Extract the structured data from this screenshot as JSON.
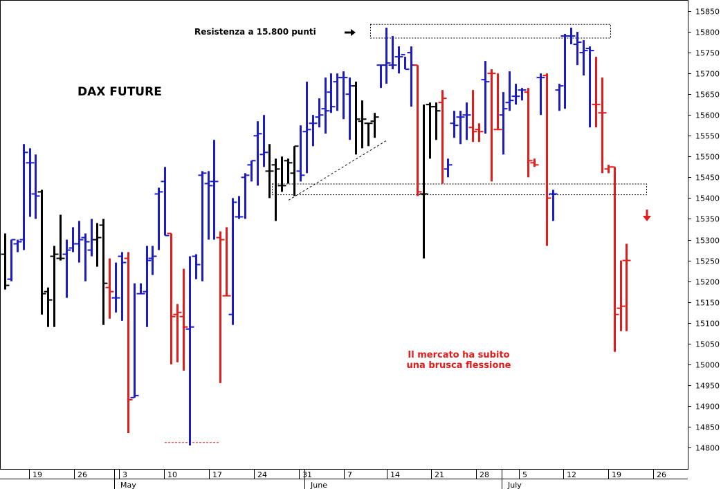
{
  "chart_data": {
    "type": "ohlc",
    "title": "DAX FUTURE",
    "annotations": {
      "resistance": "Resistenza a 15.800 punti",
      "comment_line1": "Il mercato ha subito",
      "comment_line2": "una brusca flessione"
    },
    "y_ticks": [
      14800,
      14850,
      14900,
      14950,
      15000,
      15050,
      15100,
      15150,
      15200,
      15250,
      15300,
      15350,
      15400,
      15450,
      15500,
      15550,
      15600,
      15650,
      15700,
      15750,
      15800,
      15850
    ],
    "ylim": [
      14775,
      15865
    ],
    "x_tick_labels": [
      "19",
      "26",
      "3",
      "10",
      "17",
      "24",
      "31",
      "7",
      "14",
      "21",
      "28",
      "5",
      "12",
      "19",
      "26"
    ],
    "month_labels": [
      "May",
      "June",
      "July"
    ],
    "legend_colors": {
      "up": "#1b1bc8",
      "down": "#e41b1b",
      "neutral": "#000000"
    },
    "bars": [
      {
        "o": 15265,
        "h": 15315,
        "l": 15180,
        "c": 15190,
        "color": "black"
      },
      {
        "o": 15205,
        "h": 15300,
        "l": 15200,
        "c": 15300,
        "color": "blue"
      },
      {
        "o": 15290,
        "h": 15300,
        "l": 15270,
        "c": 15295,
        "color": "blue"
      },
      {
        "o": 15300,
        "h": 15530,
        "l": 15275,
        "c": 15510,
        "color": "blue"
      },
      {
        "o": 15485,
        "h": 15520,
        "l": 15355,
        "c": 15485,
        "color": "blue"
      },
      {
        "o": 15410,
        "h": 15505,
        "l": 15350,
        "c": 15405,
        "color": "blue"
      },
      {
        "o": 15415,
        "h": 15420,
        "l": 15120,
        "c": 15170,
        "color": "black"
      },
      {
        "o": 15175,
        "h": 15185,
        "l": 15090,
        "c": 15155,
        "color": "black"
      },
      {
        "o": 15260,
        "h": 15285,
        "l": 15090,
        "c": 15265,
        "color": "black"
      },
      {
        "o": 15255,
        "h": 15360,
        "l": 15250,
        "c": 15255,
        "color": "black"
      },
      {
        "o": 15265,
        "h": 15300,
        "l": 15160,
        "c": 15275,
        "color": "blue"
      },
      {
        "o": 15280,
        "h": 15330,
        "l": 15270,
        "c": 15290,
        "color": "blue"
      },
      {
        "o": 15290,
        "h": 15345,
        "l": 15245,
        "c": 15300,
        "color": "blue"
      },
      {
        "o": 15305,
        "h": 15315,
        "l": 15200,
        "c": 15295,
        "color": "blue"
      },
      {
        "o": 15275,
        "h": 15350,
        "l": 15260,
        "c": 15300,
        "color": "blue"
      },
      {
        "o": 15300,
        "h": 15340,
        "l": 15235,
        "c": 15305,
        "color": "black"
      },
      {
        "o": 15335,
        "h": 15350,
        "l": 15095,
        "c": 15195,
        "color": "black"
      },
      {
        "o": 15185,
        "h": 15255,
        "l": 15110,
        "c": 15175,
        "color": "red"
      },
      {
        "o": 15160,
        "h": 15245,
        "l": 15125,
        "c": 15160,
        "color": "blue"
      },
      {
        "o": 15260,
        "h": 15270,
        "l": 15105,
        "c": 15245,
        "color": "blue"
      },
      {
        "o": 15255,
        "h": 15270,
        "l": 14835,
        "c": 14915,
        "color": "red"
      },
      {
        "o": 14920,
        "h": 15195,
        "l": 14920,
        "c": 14925,
        "color": "blue"
      },
      {
        "o": 15170,
        "h": 15195,
        "l": 15170,
        "c": 15170,
        "color": "blue"
      },
      {
        "o": 15175,
        "h": 15285,
        "l": 15090,
        "c": 15250,
        "color": "blue"
      },
      {
        "o": 15255,
        "h": 15285,
        "l": 15215,
        "c": 15260,
        "color": "blue"
      },
      {
        "o": 15410,
        "h": 15425,
        "l": 15275,
        "c": 15415,
        "color": "blue"
      },
      {
        "o": 15440,
        "h": 15475,
        "l": 15310,
        "c": 15310,
        "color": "blue"
      },
      {
        "o": 15315,
        "h": 15315,
        "l": 15000,
        "c": 15115,
        "color": "red"
      },
      {
        "o": 15120,
        "h": 15145,
        "l": 15005,
        "c": 15125,
        "color": "red"
      },
      {
        "o": 15115,
        "h": 15230,
        "l": 14985,
        "c": 15090,
        "color": "red"
      },
      {
        "o": 15085,
        "h": 15260,
        "l": 14805,
        "c": 15090,
        "color": "blue"
      },
      {
        "o": 15260,
        "h": 15265,
        "l": 15205,
        "c": 15240,
        "color": "blue"
      },
      {
        "o": 15455,
        "h": 15465,
        "l": 15200,
        "c": 15460,
        "color": "blue"
      },
      {
        "o": 15435,
        "h": 15465,
        "l": 15300,
        "c": 15430,
        "color": "blue"
      },
      {
        "o": 15440,
        "h": 15540,
        "l": 15300,
        "c": 15440,
        "color": "blue"
      },
      {
        "o": 15305,
        "h": 15320,
        "l": 14955,
        "c": 15300,
        "color": "red"
      },
      {
        "o": 15165,
        "h": 15330,
        "l": 15165,
        "c": 15165,
        "color": "red"
      },
      {
        "o": 15120,
        "h": 15400,
        "l": 15095,
        "c": 15390,
        "color": "blue"
      },
      {
        "o": 15355,
        "h": 15405,
        "l": 15350,
        "c": 15355,
        "color": "blue"
      },
      {
        "o": 15450,
        "h": 15460,
        "l": 15350,
        "c": 15455,
        "color": "blue"
      },
      {
        "o": 15480,
        "h": 15490,
        "l": 15440,
        "c": 15490,
        "color": "blue"
      },
      {
        "o": 15550,
        "h": 15585,
        "l": 15430,
        "c": 15555,
        "color": "blue"
      },
      {
        "o": 15505,
        "h": 15600,
        "l": 15475,
        "c": 15510,
        "color": "blue"
      },
      {
        "o": 15465,
        "h": 15530,
        "l": 15400,
        "c": 15465,
        "color": "black"
      },
      {
        "o": 15480,
        "h": 15495,
        "l": 15345,
        "c": 15470,
        "color": "black"
      },
      {
        "o": 15430,
        "h": 15500,
        "l": 15415,
        "c": 15430,
        "color": "black"
      },
      {
        "o": 15490,
        "h": 15495,
        "l": 15435,
        "c": 15485,
        "color": "black"
      },
      {
        "o": 15460,
        "h": 15525,
        "l": 15405,
        "c": 15525,
        "color": "black"
      },
      {
        "o": 15465,
        "h": 15575,
        "l": 15440,
        "c": 15455,
        "color": "blue"
      },
      {
        "o": 15560,
        "h": 15680,
        "l": 15460,
        "c": 15565,
        "color": "blue"
      },
      {
        "o": 15580,
        "h": 15600,
        "l": 15525,
        "c": 15580,
        "color": "blue"
      },
      {
        "o": 15595,
        "h": 15640,
        "l": 15570,
        "c": 15600,
        "color": "blue"
      },
      {
        "o": 15615,
        "h": 15690,
        "l": 15555,
        "c": 15610,
        "color": "blue"
      },
      {
        "o": 15655,
        "h": 15700,
        "l": 15605,
        "c": 15620,
        "color": "blue"
      },
      {
        "o": 15680,
        "h": 15700,
        "l": 15610,
        "c": 15690,
        "color": "blue"
      },
      {
        "o": 15690,
        "h": 15705,
        "l": 15590,
        "c": 15690,
        "color": "blue"
      },
      {
        "o": 15650,
        "h": 15690,
        "l": 15540,
        "c": 15670,
        "color": "blue"
      },
      {
        "o": 15670,
        "h": 15680,
        "l": 15505,
        "c": 15590,
        "color": "black"
      },
      {
        "o": 15585,
        "h": 15635,
        "l": 15520,
        "c": 15590,
        "color": "black"
      },
      {
        "o": 15580,
        "h": 15580,
        "l": 15525,
        "c": 15580,
        "color": "black"
      },
      {
        "o": 15585,
        "h": 15605,
        "l": 15545,
        "c": 15595,
        "color": "black"
      },
      {
        "o": 15720,
        "h": 15720,
        "l": 15665,
        "c": 15720,
        "color": "blue"
      },
      {
        "o": 15720,
        "h": 15810,
        "l": 15675,
        "c": 15725,
        "color": "blue"
      },
      {
        "o": 15720,
        "h": 15790,
        "l": 15710,
        "c": 15720,
        "color": "blue"
      },
      {
        "o": 15740,
        "h": 15765,
        "l": 15700,
        "c": 15740,
        "color": "blue"
      },
      {
        "o": 15745,
        "h": 15740,
        "l": 15710,
        "c": 15710,
        "color": "blue"
      },
      {
        "o": 15750,
        "h": 15765,
        "l": 15620,
        "c": 15720,
        "color": "blue"
      },
      {
        "o": 15720,
        "h": 15720,
        "l": 15405,
        "c": 15415,
        "color": "red"
      },
      {
        "o": 15410,
        "h": 15625,
        "l": 15255,
        "c": 15410,
        "color": "black"
      },
      {
        "o": 15625,
        "h": 15630,
        "l": 15495,
        "c": 15620,
        "color": "black"
      },
      {
        "o": 15620,
        "h": 15630,
        "l": 15540,
        "c": 15610,
        "color": "black"
      },
      {
        "o": 15630,
        "h": 15660,
        "l": 15435,
        "c": 15640,
        "color": "red"
      },
      {
        "o": 15470,
        "h": 15495,
        "l": 15450,
        "c": 15480,
        "color": "blue"
      },
      {
        "o": 15580,
        "h": 15610,
        "l": 15545,
        "c": 15575,
        "color": "blue"
      },
      {
        "o": 15595,
        "h": 15610,
        "l": 15530,
        "c": 15595,
        "color": "blue"
      },
      {
        "o": 15600,
        "h": 15630,
        "l": 15540,
        "c": 15600,
        "color": "blue"
      },
      {
        "o": 15570,
        "h": 15660,
        "l": 15535,
        "c": 15560,
        "color": "red"
      },
      {
        "o": 15565,
        "h": 15580,
        "l": 15535,
        "c": 15560,
        "color": "red"
      },
      {
        "o": 15685,
        "h": 15730,
        "l": 15555,
        "c": 15680,
        "color": "blue"
      },
      {
        "o": 15700,
        "h": 15710,
        "l": 15440,
        "c": 15700,
        "color": "red"
      },
      {
        "o": 15565,
        "h": 15700,
        "l": 15565,
        "c": 15565,
        "color": "red"
      },
      {
        "o": 15600,
        "h": 15655,
        "l": 15505,
        "c": 15615,
        "color": "blue"
      },
      {
        "o": 15630,
        "h": 15705,
        "l": 15610,
        "c": 15635,
        "color": "blue"
      },
      {
        "o": 15645,
        "h": 15675,
        "l": 15625,
        "c": 15645,
        "color": "blue"
      },
      {
        "o": 15660,
        "h": 15665,
        "l": 15635,
        "c": 15660,
        "color": "blue"
      },
      {
        "o": 15655,
        "h": 15665,
        "l": 15450,
        "c": 15490,
        "color": "red"
      },
      {
        "o": 15485,
        "h": 15495,
        "l": 15475,
        "c": 15480,
        "color": "red"
      },
      {
        "o": 15690,
        "h": 15700,
        "l": 15600,
        "c": 15690,
        "color": "blue"
      },
      {
        "o": 15695,
        "h": 15700,
        "l": 15285,
        "c": 15400,
        "color": "red"
      },
      {
        "o": 15410,
        "h": 15420,
        "l": 15345,
        "c": 15410,
        "color": "blue"
      },
      {
        "o": 15660,
        "h": 15675,
        "l": 15610,
        "c": 15670,
        "color": "blue"
      },
      {
        "o": 15790,
        "h": 15795,
        "l": 15615,
        "c": 15790,
        "color": "blue"
      },
      {
        "o": 15790,
        "h": 15810,
        "l": 15770,
        "c": 15790,
        "color": "blue"
      },
      {
        "o": 15770,
        "h": 15800,
        "l": 15720,
        "c": 15775,
        "color": "blue"
      },
      {
        "o": 15750,
        "h": 15780,
        "l": 15695,
        "c": 15755,
        "color": "blue"
      },
      {
        "o": 15760,
        "h": 15765,
        "l": 15570,
        "c": 15755,
        "color": "blue"
      },
      {
        "o": 15625,
        "h": 15740,
        "l": 15570,
        "c": 15625,
        "color": "red"
      },
      {
        "o": 15605,
        "h": 15690,
        "l": 15460,
        "c": 15605,
        "color": "red"
      },
      {
        "o": 15470,
        "h": 15480,
        "l": 15460,
        "c": 15475,
        "color": "red"
      },
      {
        "o": 15475,
        "h": 15475,
        "l": 15030,
        "c": 15120,
        "color": "red"
      },
      {
        "o": 15135,
        "h": 15250,
        "l": 15080,
        "c": 15140,
        "color": "red"
      },
      {
        "o": 15250,
        "h": 15290,
        "l": 15080,
        "c": 15250,
        "color": "red"
      }
    ]
  }
}
